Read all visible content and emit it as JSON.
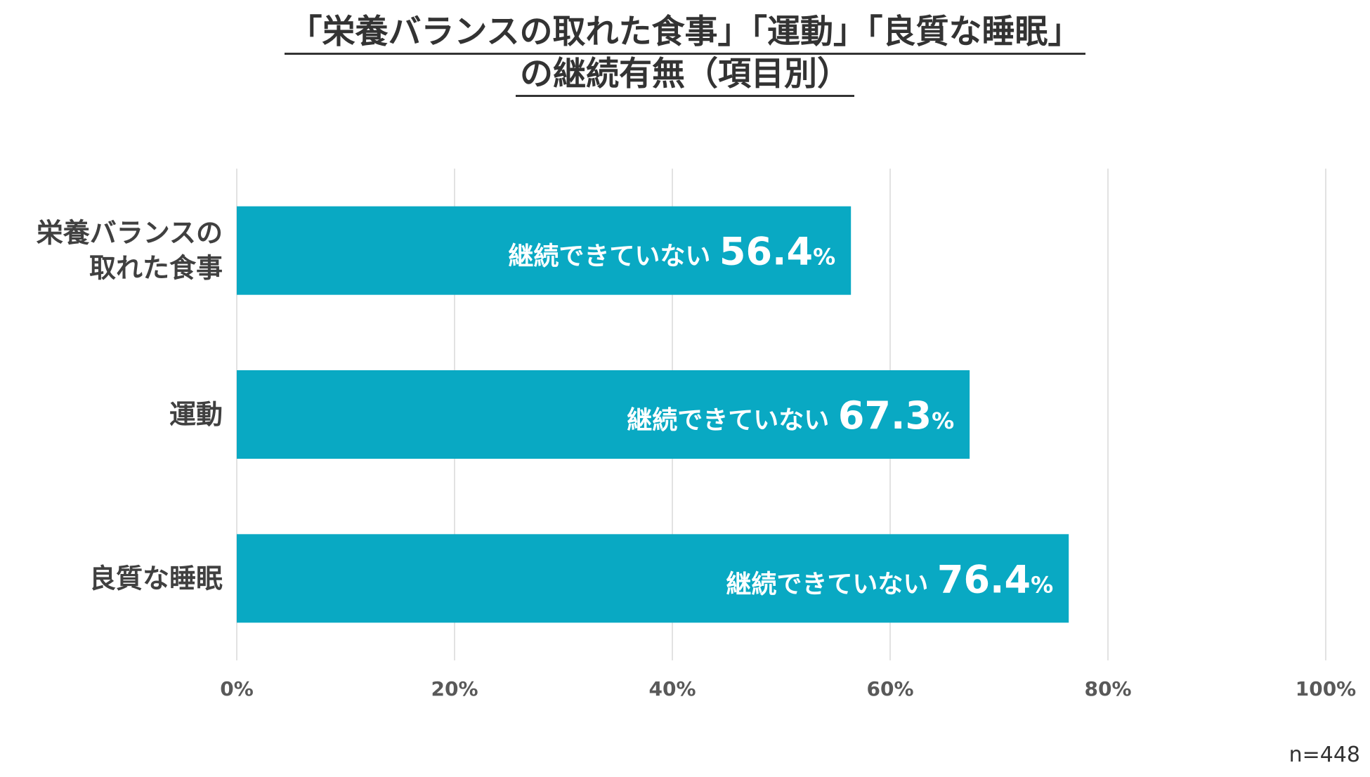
{
  "title": {
    "line1": "「栄養バランスの取れた食事」「運動」「良質な睡眠」",
    "line2": "の継続有無（項目別）"
  },
  "chart_data": {
    "type": "bar",
    "orientation": "horizontal",
    "categories": [
      [
        "栄養バランスの",
        "取れた食事"
      ],
      [
        "運動"
      ],
      [
        "良質な睡眠"
      ]
    ],
    "series": [
      {
        "name": "継続できていない",
        "values": [
          56.4,
          67.3,
          76.4
        ]
      }
    ],
    "data_label_prefix": "継続できていない",
    "value_suffix": "%",
    "xlim": [
      0,
      100
    ],
    "x_ticks": [
      0,
      20,
      40,
      60,
      80,
      100
    ],
    "x_tick_labels": [
      "0%",
      "20%",
      "40%",
      "60%",
      "80%",
      "100%"
    ],
    "grid": true,
    "legend": "none",
    "colors": {
      "bar": "#09A9C3",
      "grid": "#D9D9D9",
      "text": "#404040"
    }
  },
  "note": "n=448"
}
